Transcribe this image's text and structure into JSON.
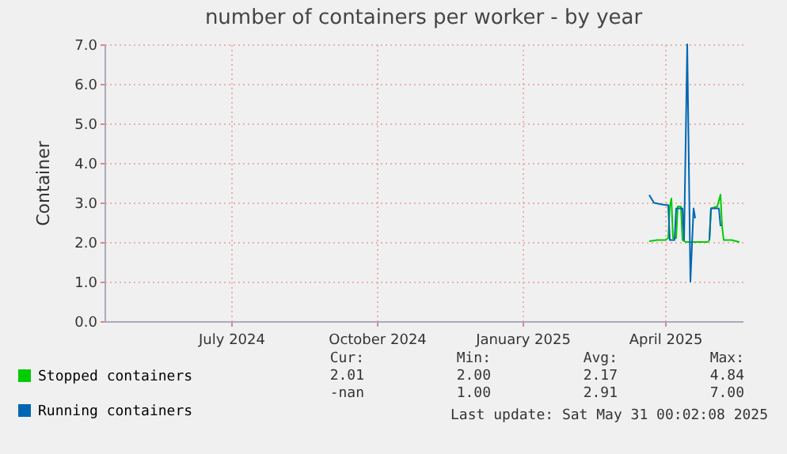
{
  "chart_data": {
    "type": "line",
    "title": "number of containers per worker - by year",
    "ylabel": "Container",
    "xlim": [
      "2024-04-27",
      "2025-06-04"
    ],
    "ylim": [
      0,
      7
    ],
    "xticks": [
      {
        "value": "2024-07-16",
        "label": "July 2024"
      },
      {
        "value": "2024-10-16",
        "label": "October 2024"
      },
      {
        "value": "2025-01-16",
        "label": "January 2025"
      },
      {
        "value": "2025-04-16",
        "label": "April 2025"
      }
    ],
    "yticks": [
      {
        "value": 0,
        "label": "0.0"
      },
      {
        "value": 1,
        "label": "1.0"
      },
      {
        "value": 2,
        "label": "2.0"
      },
      {
        "value": 3,
        "label": "3.0"
      },
      {
        "value": 4,
        "label": "4.0"
      },
      {
        "value": 5,
        "label": "5.0"
      },
      {
        "value": 6,
        "label": "6.0"
      },
      {
        "value": 7,
        "label": "7.0"
      }
    ],
    "grid": true,
    "legend": "bottom left",
    "series": [
      {
        "name": "Stopped containers",
        "color": "#00cc00",
        "x": [
          "2025-04-06",
          "2025-04-11",
          "2025-04-16",
          "2025-04-18",
          "2025-04-19",
          "2025-04-20",
          "2025-04-21",
          "2025-04-23",
          "2025-04-24",
          "2025-04-26",
          "2025-04-27",
          "2025-04-29",
          "2025-05-02",
          "2025-05-04",
          "2025-05-13",
          "2025-05-14",
          "2025-05-15",
          "2025-05-19",
          "2025-05-21",
          "2025-05-22",
          "2025-05-23",
          "2025-05-28",
          "2025-06-02"
        ],
        "values": [
          2.02,
          2.05,
          2.05,
          2.1,
          2.9,
          3.1,
          2.1,
          2.1,
          2.9,
          2.9,
          2.05,
          2.0,
          2.0,
          2.0,
          2.0,
          2.05,
          2.85,
          2.9,
          3.2,
          2.4,
          2.05,
          2.05,
          2.0
        ]
      },
      {
        "name": "Running containers",
        "color": "#0066b3",
        "x": [
          "2025-04-06",
          "2025-04-09",
          "2025-04-14",
          "2025-04-18",
          "2025-04-19",
          "2025-04-22",
          "2025-04-23",
          "2025-04-27",
          "2025-04-28",
          "2025-04-30",
          "2025-05-02",
          "2025-05-04",
          "2025-05-05",
          "2025-05-10",
          "2025-05-14",
          "2025-05-15",
          "2025-05-20",
          "2025-05-21"
        ],
        "values": [
          3.19,
          2.99,
          2.95,
          2.93,
          2.05,
          2.05,
          2.85,
          2.85,
          2.05,
          7.0,
          1.0,
          2.85,
          2.6,
          null,
          2.05,
          2.85,
          2.85,
          2.4
        ]
      }
    ],
    "annotations": [
      "Cur:",
      "Min:",
      "Avg:",
      "Max:",
      "2.01",
      "2.00",
      "2.17",
      "4.84",
      "-nan",
      "1.00",
      "2.91",
      "7.00",
      "Last update: Sat May 31 00:02:08 2025"
    ]
  }
}
